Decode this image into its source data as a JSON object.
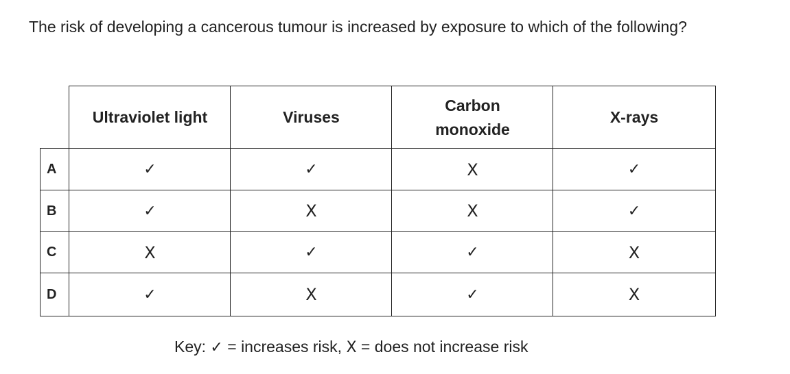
{
  "question": {
    "text": "The risk of developing a cancerous tumour is increased by exposure to which of the following?"
  },
  "table": {
    "headers": [
      "Ultraviolet light",
      "Viruses",
      "Carbon monoxide",
      "X-rays"
    ],
    "rows": [
      {
        "label": "A",
        "marks": [
          "✓",
          "✓",
          "X",
          "✓"
        ]
      },
      {
        "label": "B",
        "marks": [
          "✓",
          "X",
          "X",
          "✓"
        ]
      },
      {
        "label": "C",
        "marks": [
          "X",
          "✓",
          "✓",
          "X"
        ]
      },
      {
        "label": "D",
        "marks": [
          "✓",
          "X",
          "✓",
          "X"
        ]
      }
    ]
  },
  "key": {
    "prefix": "Key:",
    "tick_symbol": "✓",
    "tick_text": "= increases risk,",
    "cross_symbol": "X",
    "cross_text": "= does not increase risk"
  }
}
